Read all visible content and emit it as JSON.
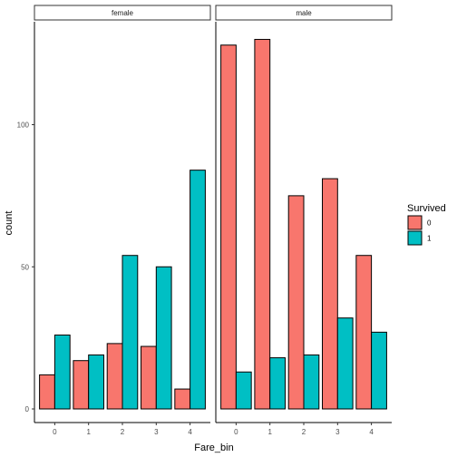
{
  "chart_data": {
    "type": "bar",
    "xlabel": "Fare_bin",
    "ylabel": "count",
    "ylim": [
      0,
      140
    ],
    "y_ticks": [
      0,
      50,
      100
    ],
    "categories": [
      "0",
      "1",
      "2",
      "3",
      "4"
    ],
    "grid": false,
    "legend": {
      "title": "Survived",
      "position": "right",
      "entries": [
        "0",
        "1"
      ]
    },
    "colors": {
      "0": "#F8766D",
      "1": "#00BFC4"
    },
    "panels": [
      {
        "label": "female",
        "series": [
          {
            "name": "0",
            "values": [
              12,
              17,
              23,
              22,
              7
            ]
          },
          {
            "name": "1",
            "values": [
              26,
              19,
              54,
              50,
              84
            ]
          }
        ]
      },
      {
        "label": "male",
        "series": [
          {
            "name": "0",
            "values": [
              128,
              130,
              75,
              81,
              54
            ]
          },
          {
            "name": "1",
            "values": [
              13,
              18,
              19,
              32,
              27
            ]
          }
        ]
      }
    ]
  }
}
